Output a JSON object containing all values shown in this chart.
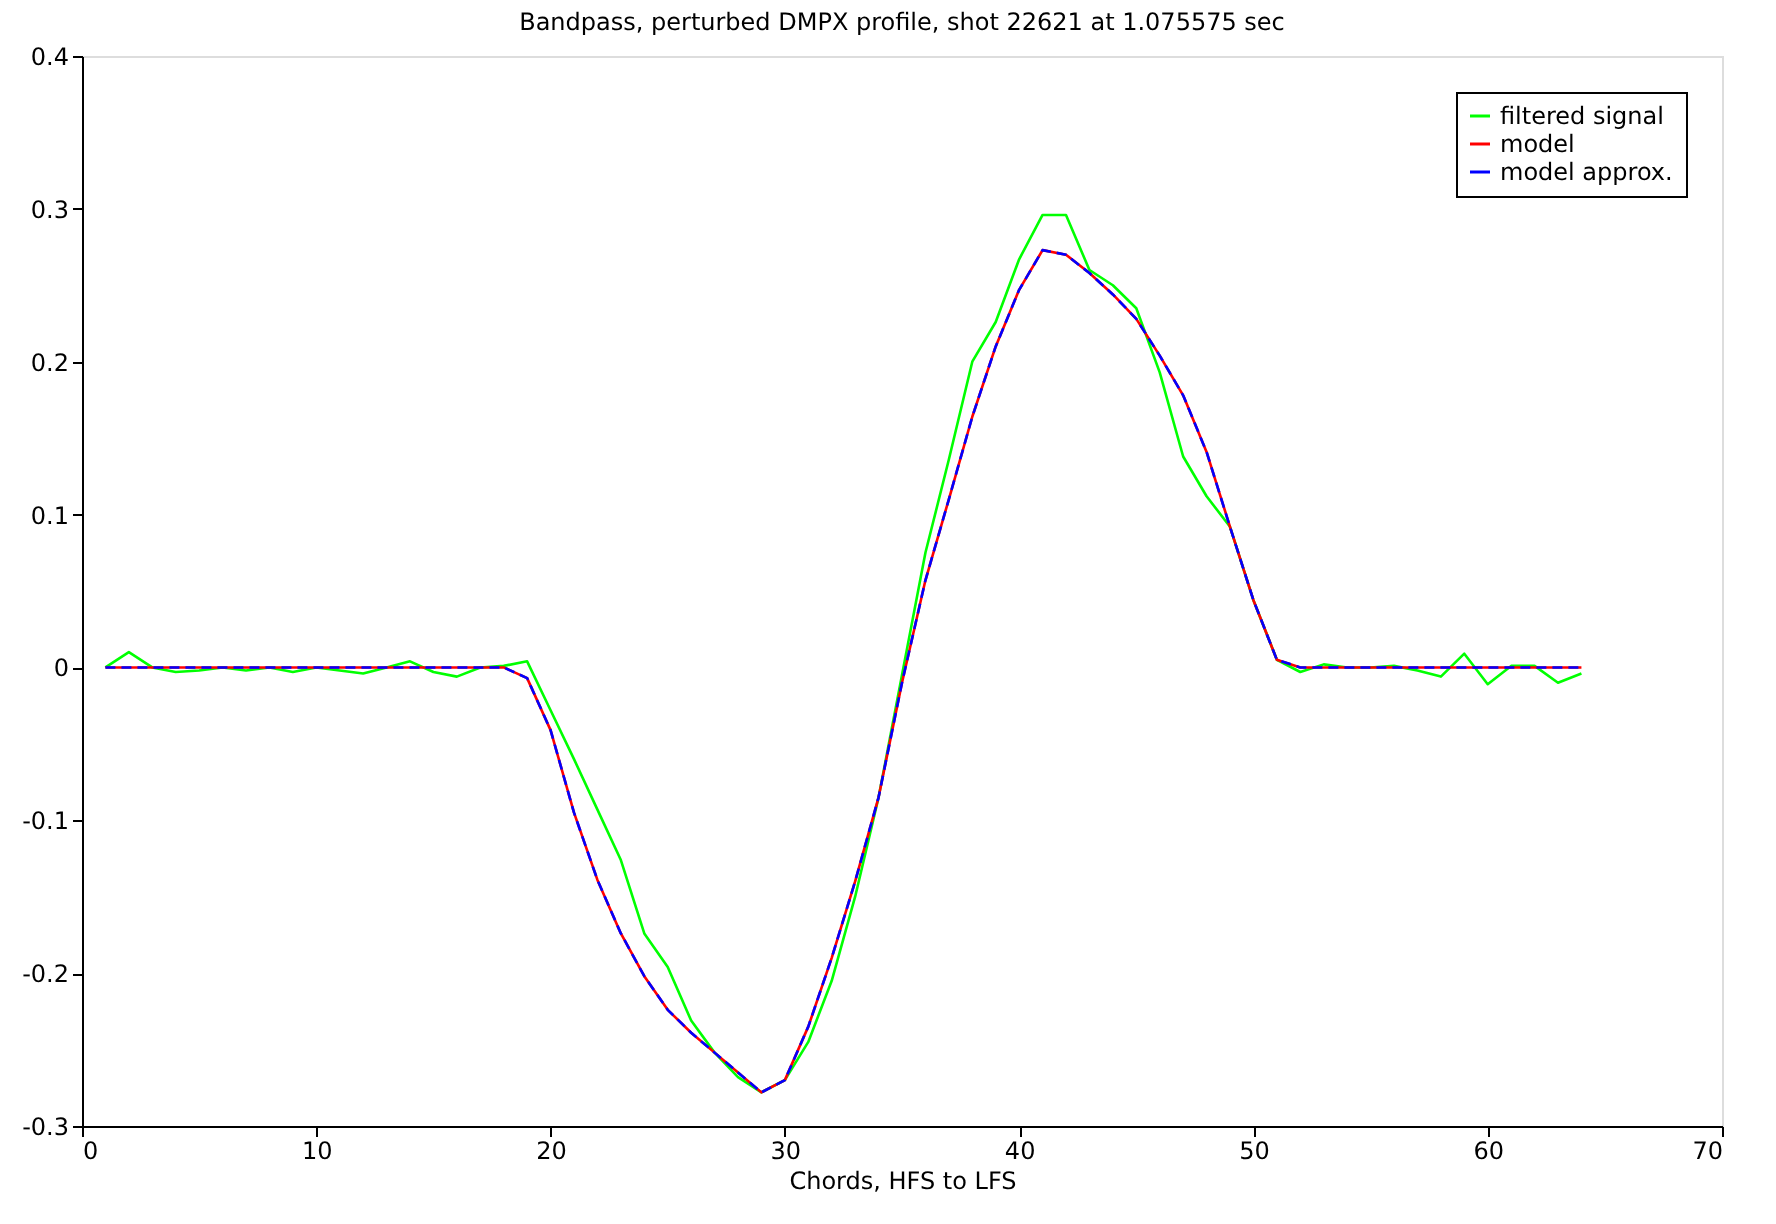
{
  "chart_data": {
    "type": "line",
    "title": "Bandpass, perturbed DMPX profile, shot 22621 at 1.075575 sec",
    "xlabel": "Chords, HFS to LFS",
    "x": [
      1,
      2,
      3,
      4,
      5,
      6,
      7,
      8,
      9,
      10,
      11,
      12,
      13,
      14,
      15,
      16,
      17,
      18,
      19,
      20,
      21,
      22,
      23,
      24,
      25,
      26,
      27,
      28,
      29,
      30,
      31,
      32,
      33,
      34,
      35,
      36,
      37,
      38,
      39,
      40,
      41,
      42,
      43,
      44,
      45,
      46,
      47,
      48,
      49,
      50,
      51,
      52,
      53,
      54,
      55,
      56,
      57,
      58,
      59,
      60,
      61,
      62,
      63,
      64
    ],
    "series": [
      {
        "name": "filtered signal",
        "color": "#00ff00",
        "line_style": "solid",
        "values": [
          0,
          0.01,
          0,
          -0.003,
          -0.002,
          0,
          -0.002,
          0,
          -0.003,
          0,
          -0.002,
          -0.004,
          0,
          0.004,
          -0.003,
          -0.006,
          0,
          0.001,
          0.004,
          -0.028,
          -0.06,
          -0.093,
          -0.126,
          -0.174,
          -0.196,
          -0.231,
          -0.252,
          -0.268,
          -0.278,
          -0.27,
          -0.245,
          -0.205,
          -0.15,
          -0.085,
          -0.005,
          0.075,
          0.136,
          0.2,
          0.226,
          0.267,
          0.296,
          0.296,
          0.26,
          0.25,
          0.235,
          0.193,
          0.138,
          0.112,
          0.092,
          0.044,
          0.005,
          -0.003,
          0.002,
          0,
          0,
          0.001,
          -0.002,
          -0.006,
          0.009,
          -0.011,
          0.001,
          0.001,
          -0.01,
          -0.004
        ]
      },
      {
        "name": "model",
        "color": "#ff0000",
        "line_style": "solid",
        "values": [
          0,
          0,
          0,
          0,
          0,
          0,
          0,
          0,
          0,
          0,
          0,
          0,
          0,
          0,
          0,
          0,
          0,
          0,
          -0.007,
          -0.041,
          -0.095,
          -0.139,
          -0.174,
          -0.202,
          -0.224,
          -0.239,
          -0.252,
          -0.265,
          -0.278,
          -0.27,
          -0.235,
          -0.19,
          -0.14,
          -0.085,
          -0.01,
          0.057,
          0.11,
          0.164,
          0.21,
          0.247,
          0.273,
          0.27,
          0.258,
          0.244,
          0.228,
          0.204,
          0.178,
          0.141,
          0.092,
          0.044,
          0.005,
          0,
          0,
          0,
          0,
          0,
          0,
          0,
          0,
          0,
          0,
          0,
          0,
          0
        ]
      },
      {
        "name": "model approx.",
        "color": "#0000ff",
        "line_style": "dashed",
        "values": [
          0,
          0,
          0,
          0,
          0,
          0,
          0,
          0,
          0,
          0,
          0,
          0,
          0,
          0,
          0,
          0,
          0,
          0,
          -0.007,
          -0.041,
          -0.095,
          -0.139,
          -0.174,
          -0.202,
          -0.224,
          -0.239,
          -0.252,
          -0.265,
          -0.278,
          -0.27,
          -0.235,
          -0.19,
          -0.14,
          -0.085,
          -0.01,
          0.057,
          0.11,
          0.164,
          0.21,
          0.247,
          0.273,
          0.27,
          0.258,
          0.244,
          0.228,
          0.204,
          0.178,
          0.141,
          0.092,
          0.044,
          0.005,
          0,
          0,
          0,
          0,
          0,
          0,
          0,
          0,
          0,
          0,
          0,
          0,
          0
        ]
      }
    ],
    "xlim": [
      0,
      70
    ],
    "xticks": [
      0,
      10,
      20,
      30,
      40,
      50,
      60,
      70
    ],
    "ylim": [
      -0.3,
      0.4
    ],
    "yticks": [
      -0.3,
      -0.2,
      -0.1,
      0,
      0.1,
      0.2,
      0.3,
      0.4
    ],
    "grid": false,
    "legend": "top right",
    "marker": "none"
  }
}
